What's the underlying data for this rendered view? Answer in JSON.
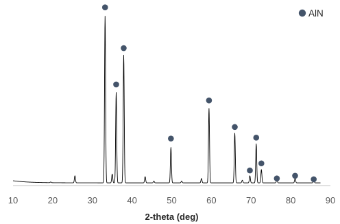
{
  "chart_data": {
    "type": "line",
    "title": "",
    "xlabel": "2-theta (deg)",
    "ylabel": "",
    "xlim": [
      10,
      90
    ],
    "xticks": [
      10,
      20,
      30,
      40,
      50,
      60,
      70,
      80,
      90
    ],
    "ylim": [
      0,
      100
    ],
    "grid": false,
    "legend": {
      "position": "top-right",
      "entries": [
        {
          "label": "AlN",
          "marker": "circle",
          "color": "#44546A"
        }
      ]
    },
    "line_color": "#000000",
    "baseline": 1.5,
    "peaks": [
      {
        "x": 19.5,
        "y": 0.4
      },
      {
        "x": 25.6,
        "y": 4
      },
      {
        "x": 33.2,
        "y": 94
      },
      {
        "x": 35.0,
        "y": 5
      },
      {
        "x": 36.0,
        "y": 51
      },
      {
        "x": 37.9,
        "y": 72
      },
      {
        "x": 43.3,
        "y": 3.5
      },
      {
        "x": 45.5,
        "y": 1
      },
      {
        "x": 49.8,
        "y": 20
      },
      {
        "x": 52.5,
        "y": 1
      },
      {
        "x": 57.5,
        "y": 2.5
      },
      {
        "x": 59.4,
        "y": 42
      },
      {
        "x": 65.9,
        "y": 28
      },
      {
        "x": 67.8,
        "y": 1.5
      },
      {
        "x": 69.7,
        "y": 4
      },
      {
        "x": 71.3,
        "y": 22
      },
      {
        "x": 72.6,
        "y": 7.5
      },
      {
        "x": 76.5,
        "y": 1.5
      },
      {
        "x": 81.1,
        "y": 2.5
      },
      {
        "x": 85.8,
        "y": 1.5
      }
    ],
    "series": [
      {
        "name": "AlN",
        "marker": "circle",
        "color": "#44546A",
        "points": [
          {
            "x": 33.2,
            "y": 100.5
          },
          {
            "x": 36.0,
            "y": 57
          },
          {
            "x": 37.9,
            "y": 77.5
          },
          {
            "x": 49.8,
            "y": 26.5
          },
          {
            "x": 59.4,
            "y": 48
          },
          {
            "x": 65.9,
            "y": 33
          },
          {
            "x": 71.3,
            "y": 27
          },
          {
            "x": 72.6,
            "y": 12.5
          },
          {
            "x": 69.7,
            "y": 8.5
          },
          {
            "x": 76.5,
            "y": 4
          },
          {
            "x": 81.1,
            "y": 5.5
          },
          {
            "x": 85.8,
            "y": 3.5
          }
        ]
      }
    ]
  }
}
